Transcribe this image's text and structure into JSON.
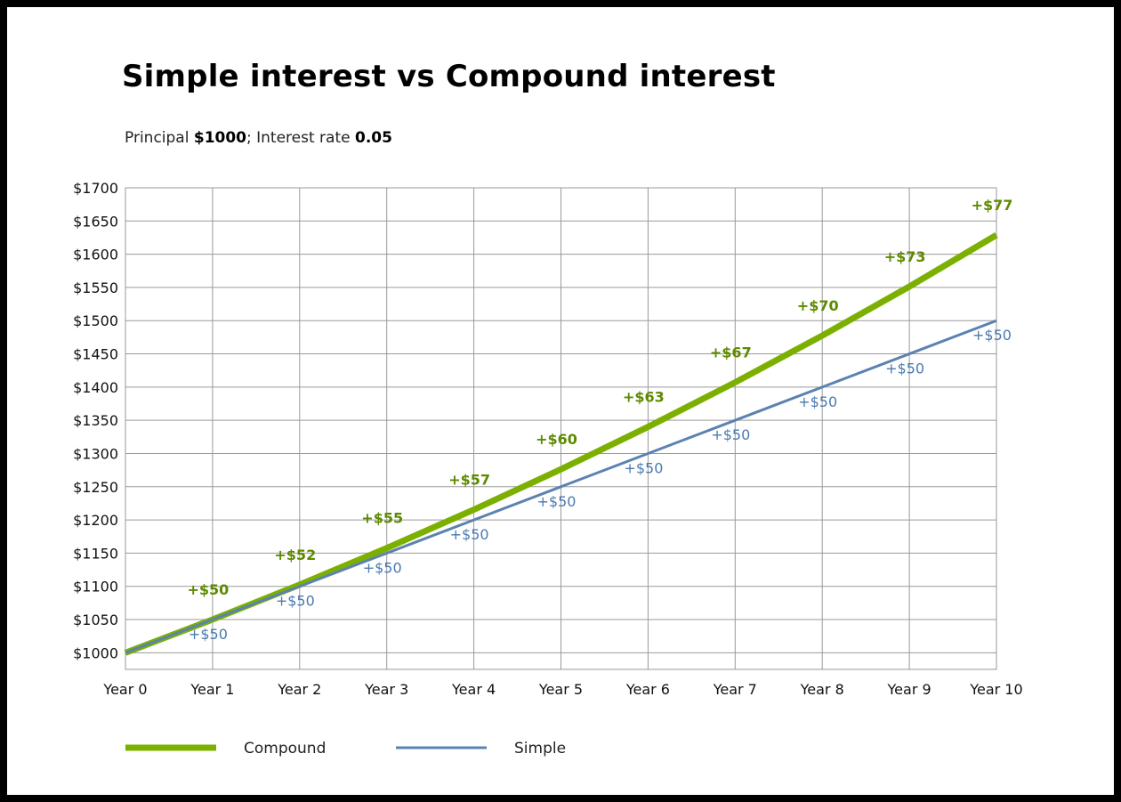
{
  "chart_data": {
    "type": "line",
    "title": "Simple interest vs Compound interest",
    "subtitle": {
      "prefix": "Principal ",
      "principal": "$1000",
      "middle": "; Interest rate ",
      "rate": "0.05"
    },
    "categories": [
      "Year 0",
      "Year 1",
      "Year 2",
      "Year 3",
      "Year 4",
      "Year 5",
      "Year 6",
      "Year 7",
      "Year 8",
      "Year 9",
      "Year 10"
    ],
    "ylim": [
      975,
      1700
    ],
    "yticks": [
      1000,
      1050,
      1100,
      1150,
      1200,
      1250,
      1300,
      1350,
      1400,
      1450,
      1500,
      1550,
      1600,
      1650,
      1700
    ],
    "ytick_labels": [
      "$1000",
      "$1050",
      "$1100",
      "$1150",
      "$1200",
      "$1250",
      "$1300",
      "$1350",
      "$1400",
      "$1450",
      "$1500",
      "$1550",
      "$1600",
      "$1650",
      "$1700"
    ],
    "grid": true,
    "legend_position": "bottom-left",
    "series": [
      {
        "name": "Compound",
        "color": "#7cb000",
        "label_color": "#5e8a00",
        "values": [
          1000,
          1050,
          1102.5,
          1157.63,
          1215.51,
          1276.28,
          1340.1,
          1407.1,
          1477.46,
          1551.33,
          1628.89
        ],
        "increments": [
          "+$50",
          "+$52",
          "+$55",
          "+$57",
          "+$60",
          "+$63",
          "+$67",
          "+$70",
          "+$73",
          "+$77"
        ]
      },
      {
        "name": "Simple",
        "color": "#5b82b0",
        "label_color": "#4a7ab0",
        "values": [
          1000,
          1050,
          1100,
          1150,
          1200,
          1250,
          1300,
          1350,
          1400,
          1450,
          1500
        ],
        "increments": [
          "+$50",
          "+$50",
          "+$50",
          "+$50",
          "+$50",
          "+$50",
          "+$50",
          "+$50",
          "+$50",
          "+$50"
        ]
      }
    ]
  }
}
